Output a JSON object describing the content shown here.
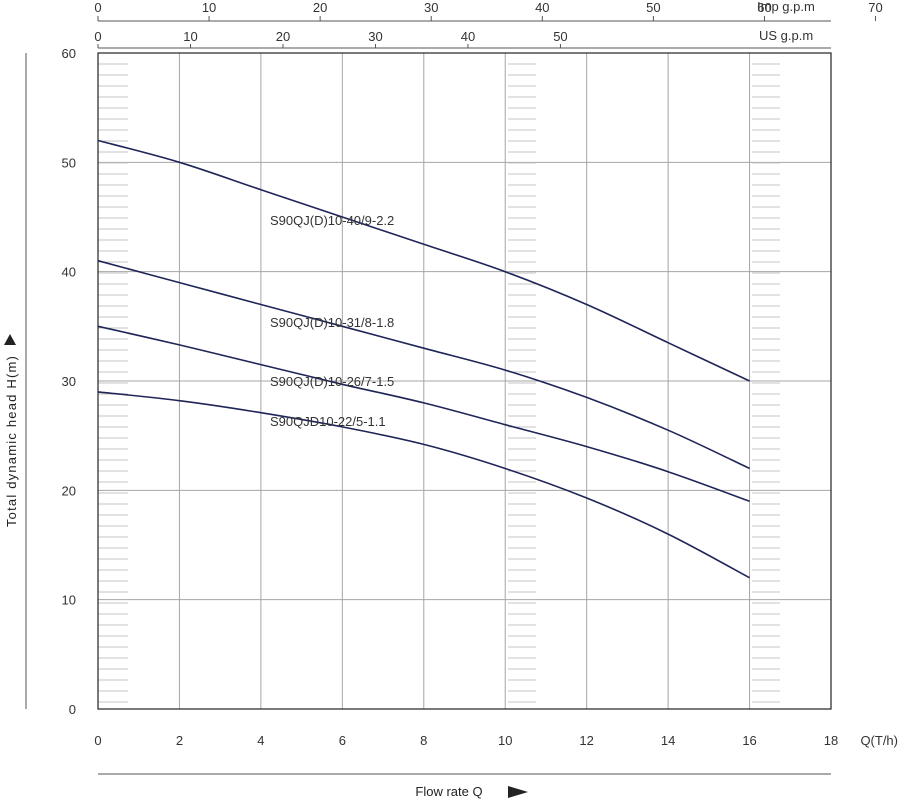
{
  "chart_data": {
    "type": "line",
    "xlabel": "Flow rate Q",
    "xunit": "Q(T/h)",
    "ylabel": "Total dynamic head  H(m)",
    "xlim": [
      0,
      18
    ],
    "ylim": [
      0,
      60
    ],
    "x_ticks": [
      0,
      2,
      4,
      6,
      8,
      10,
      12,
      14,
      16,
      18
    ],
    "y_ticks": [
      0,
      10,
      20,
      30,
      40,
      50,
      60
    ],
    "top_axes": [
      {
        "unit": "Imp  g.p.m",
        "ticks": [
          0,
          10,
          20,
          30,
          40,
          50,
          60,
          70
        ]
      },
      {
        "unit": "US g.p.m",
        "ticks": [
          0,
          10,
          20,
          30,
          40,
          50
        ]
      }
    ],
    "grid": true,
    "series": [
      {
        "name": "S90QJ(D)10-40/9-2.2",
        "x": [
          0,
          2,
          4,
          6,
          8,
          10,
          12,
          14,
          16
        ],
        "y": [
          52,
          50,
          47.5,
          45,
          42.5,
          40,
          37,
          33.5,
          30
        ]
      },
      {
        "name": "S90QJ(D)10-31/8-1.8",
        "x": [
          0,
          2,
          4,
          6,
          8,
          10,
          12,
          14,
          16
        ],
        "y": [
          41,
          39,
          37,
          35,
          33,
          31,
          28.5,
          25.5,
          22
        ]
      },
      {
        "name": "S90QJ(D)10-26/7-1.5",
        "x": [
          0,
          2,
          4,
          6,
          8,
          10,
          12,
          14,
          16
        ],
        "y": [
          35,
          33.3,
          31.5,
          29.7,
          28,
          26,
          24,
          21.7,
          19
        ]
      },
      {
        "name": "S90QJD10-22/5-1.1",
        "x": [
          0,
          2,
          4,
          6,
          8,
          10,
          12,
          14,
          16
        ],
        "y": [
          29,
          28.2,
          27.1,
          25.8,
          24.2,
          22,
          19.3,
          16,
          12
        ]
      }
    ],
    "colors": {
      "curve": "#1f2557",
      "grid": "#a6a6a6",
      "frame": "#222222"
    }
  }
}
